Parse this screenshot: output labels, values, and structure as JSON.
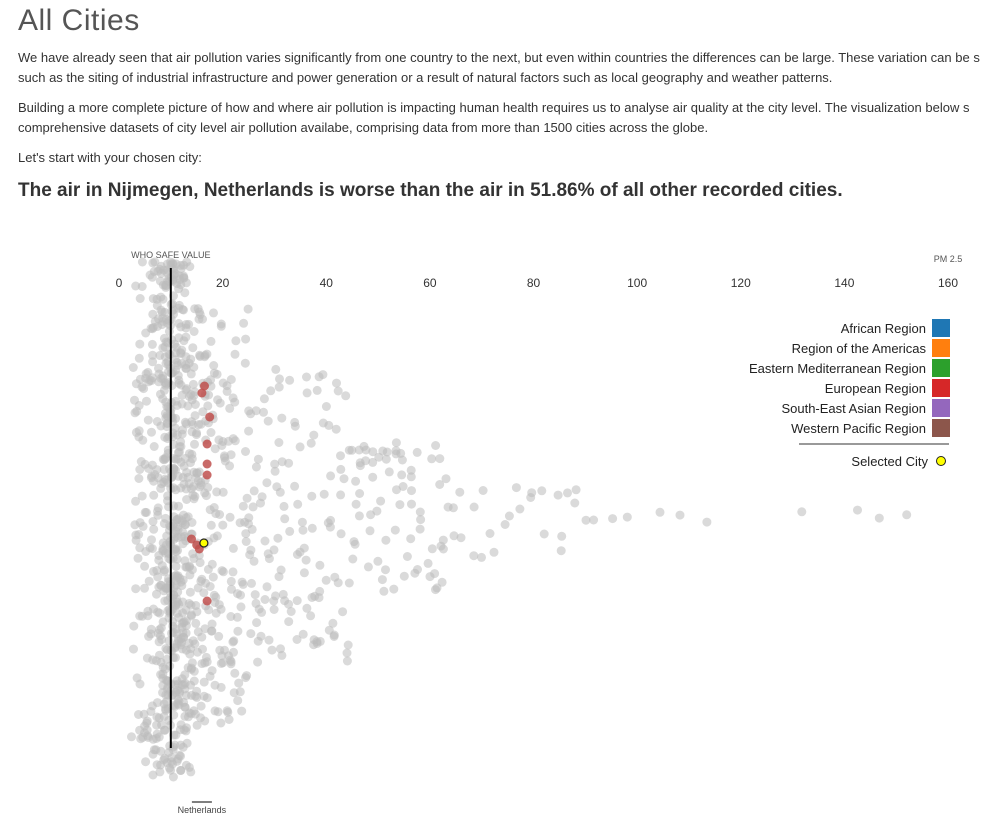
{
  "page": {
    "title": "All Cities",
    "paragraph1_line1": "We have already seen that air pollution varies significantly from one country to the next, but even within countries the differences can be large. These variation can be s",
    "paragraph1_line2": "such as the siting of industrial infrastructure and power generation or a result of natural factors such as local geography and weather patterns.",
    "paragraph2_line1": "Building a more complete picture of how and where air pollution is impacting human health requires us to analyse air quality at the city level. The visualization below s",
    "paragraph2_line2": "comprehensive datasets of city level air pollution availabe, comprising data from more than 1500 cities across the globe.",
    "paragraph3": "Let's start with your chosen city:",
    "headline": "The air in Nijmegen, Netherlands is worse than the air in 51.86% of all other recorded cities."
  },
  "colors": {
    "other_cities": "#bbbbbb",
    "european": "#c0504d",
    "selected_fill": "#ffff00",
    "selected_stroke": "#222222",
    "who_line": "#000000"
  },
  "legend": {
    "items": [
      {
        "label": "African Region",
        "color": "#1f77b4"
      },
      {
        "label": "Region of the Americas",
        "color": "#ff7f0e"
      },
      {
        "label": "Eastern Mediterranean Region",
        "color": "#2ca02c"
      },
      {
        "label": "European Region",
        "color": "#d62728"
      },
      {
        "label": "South-East Asian Region",
        "color": "#9467bd"
      },
      {
        "label": "Western Pacific Region",
        "color": "#8c564b"
      }
    ],
    "selected_label": "Selected City"
  },
  "chart_data": {
    "type": "scatter",
    "subtype": "beeswarm",
    "xlabel": "PM 2.5",
    "xlim": [
      0,
      160
    ],
    "xticks": [
      0,
      20,
      40,
      60,
      80,
      100,
      120,
      140,
      160
    ],
    "reference_line": {
      "label": "WHO SAFE VALUE",
      "value": 10
    },
    "country_marker": {
      "label": "Netherlands",
      "value": 16
    },
    "selected_city": {
      "name": "Nijmegen",
      "country": "Netherlands",
      "value": 16,
      "percentile": 51.86
    },
    "highlight_series": {
      "name": "European Region",
      "values": [
        16.5,
        16,
        17.5,
        17,
        17,
        17,
        14,
        15,
        15.5,
        17
      ]
    },
    "series": [
      {
        "name": "other cities",
        "values": [
          3,
          3.5,
          4,
          4.5,
          5,
          5.5,
          6,
          6,
          6.5,
          7,
          7,
          7.5,
          7.5,
          8,
          8,
          8,
          8.5,
          8.5,
          8.5,
          9,
          9,
          9,
          9,
          9.5,
          9.5,
          9.5,
          9.5,
          10,
          10,
          10,
          10,
          10,
          10.5,
          10.5,
          10.5,
          10.5,
          11,
          11,
          11,
          11,
          11,
          11.5,
          11.5,
          11.5,
          12,
          12,
          12,
          12,
          12.5,
          12.5,
          12.5,
          13,
          13,
          13,
          13.5,
          13.5,
          14,
          14,
          14,
          14.5,
          14.5,
          15,
          15,
          15,
          15.5,
          16,
          16,
          16.5,
          17,
          17,
          17.5,
          18,
          18,
          18.5,
          19,
          19.5,
          20,
          20,
          21,
          21.5,
          22,
          22.5,
          23,
          24,
          24.5,
          25,
          26,
          26.5,
          27,
          28,
          29,
          30,
          30.5,
          31,
          32,
          33,
          34,
          35,
          36,
          37,
          38,
          39,
          40,
          41,
          42,
          43,
          44,
          45,
          46,
          47,
          48,
          49,
          50,
          51,
          52,
          53,
          54,
          55,
          56,
          57,
          58,
          60,
          61,
          62,
          63,
          65,
          66,
          68,
          70,
          72,
          75,
          77,
          80,
          82,
          85,
          86,
          88,
          90,
          92,
          95,
          98,
          104,
          108,
          114,
          132,
          143,
          147,
          152
        ]
      }
    ]
  }
}
